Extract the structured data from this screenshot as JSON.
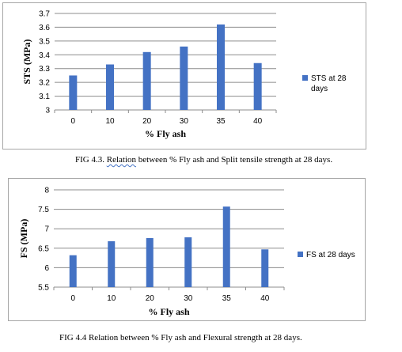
{
  "chart_data": [
    {
      "type": "bar",
      "categories": [
        "0",
        "10",
        "20",
        "30",
        "35",
        "40"
      ],
      "series": [
        {
          "name": "STS at 28 days",
          "values": [
            3.25,
            3.33,
            3.42,
            3.46,
            3.62,
            3.34
          ]
        }
      ],
      "ylabel": "STS (MPa)",
      "xlabel": "%  Fly ash",
      "ylim": [
        3,
        3.7
      ],
      "yticks": [
        "3",
        "3.1",
        "3.2",
        "3.3",
        "3.4",
        "3.5",
        "3.6",
        "3.7"
      ],
      "grid": true,
      "legend": "right",
      "color": "#4472c4"
    },
    {
      "type": "bar",
      "categories": [
        "0",
        "10",
        "20",
        "30",
        "35",
        "40"
      ],
      "series": [
        {
          "name": "FS at 28 days",
          "values": [
            6.32,
            6.68,
            6.76,
            6.78,
            7.57,
            6.47
          ]
        }
      ],
      "ylabel": "FS  (MPa)",
      "xlabel": "% Fly ash",
      "ylim": [
        5.5,
        8
      ],
      "yticks": [
        "5.5",
        "6",
        "6.5",
        "7",
        "7.5",
        "8"
      ],
      "grid": true,
      "legend": "right",
      "color": "#4472c4"
    }
  ],
  "captions": {
    "fig1_prefix": "FIG 4.3. ",
    "fig1_word": "Relation",
    "fig1_rest": " between % Fly ash and Split tensile strength at 28 days.",
    "fig2": "FIG 4.4  Relation between % Fly ash and Flexural  strength at 28 days."
  }
}
